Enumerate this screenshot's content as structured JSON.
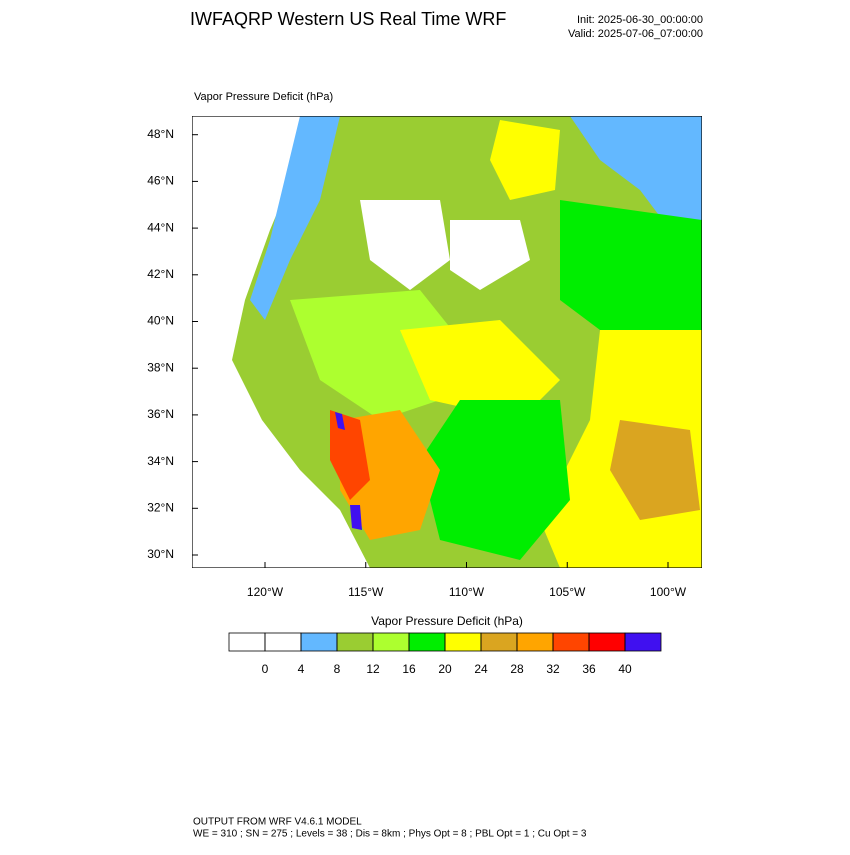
{
  "header": {
    "title": "IWFAQRP Western US Real Time WRF",
    "init": "Init: 2025-06-30_00:00:00",
    "valid": "Valid: 2025-07-06_07:00:00"
  },
  "map": {
    "label": "Vapor Pressure Deficit   (hPa)",
    "lat_ticks": [
      {
        "value": 30,
        "label": "30°N"
      },
      {
        "value": 32,
        "label": "32°N"
      },
      {
        "value": 34,
        "label": "34°N"
      },
      {
        "value": 36,
        "label": "36°N"
      },
      {
        "value": 38,
        "label": "38°N"
      },
      {
        "value": 40,
        "label": "40°N"
      },
      {
        "value": 42,
        "label": "42°N"
      },
      {
        "value": 44,
        "label": "44°N"
      },
      {
        "value": 46,
        "label": "46°N"
      },
      {
        "value": 48,
        "label": "48°N"
      }
    ],
    "lon_ticks": [
      {
        "value": -120,
        "label": "120°W"
      },
      {
        "value": -115,
        "label": "115°W"
      },
      {
        "value": -110,
        "label": "110°W"
      },
      {
        "value": -105,
        "label": "105°W"
      },
      {
        "value": -100,
        "label": "100°W"
      }
    ]
  },
  "colorbar": {
    "title": "Vapor Pressure Deficit  (hPa)",
    "levels": [
      0,
      4,
      8,
      12,
      16,
      20,
      24,
      28,
      32,
      36,
      40
    ],
    "colors": [
      "#ffffff",
      "#ffffff",
      "#63b8ff",
      "#9acd32",
      "#adff2f",
      "#00ee00",
      "#ffff00",
      "#daa520",
      "#ffa500",
      "#ff4500",
      "#ff0000",
      "#4010f0"
    ]
  },
  "footer": {
    "line1": "OUTPUT FROM WRF V4.6.1 MODEL",
    "line2": "WE = 310 ; SN = 275 ; Levels = 38 ; Dis = 8km ; Phys Opt = 8 ; PBL Opt = 1 ; Cu Opt = 3"
  }
}
